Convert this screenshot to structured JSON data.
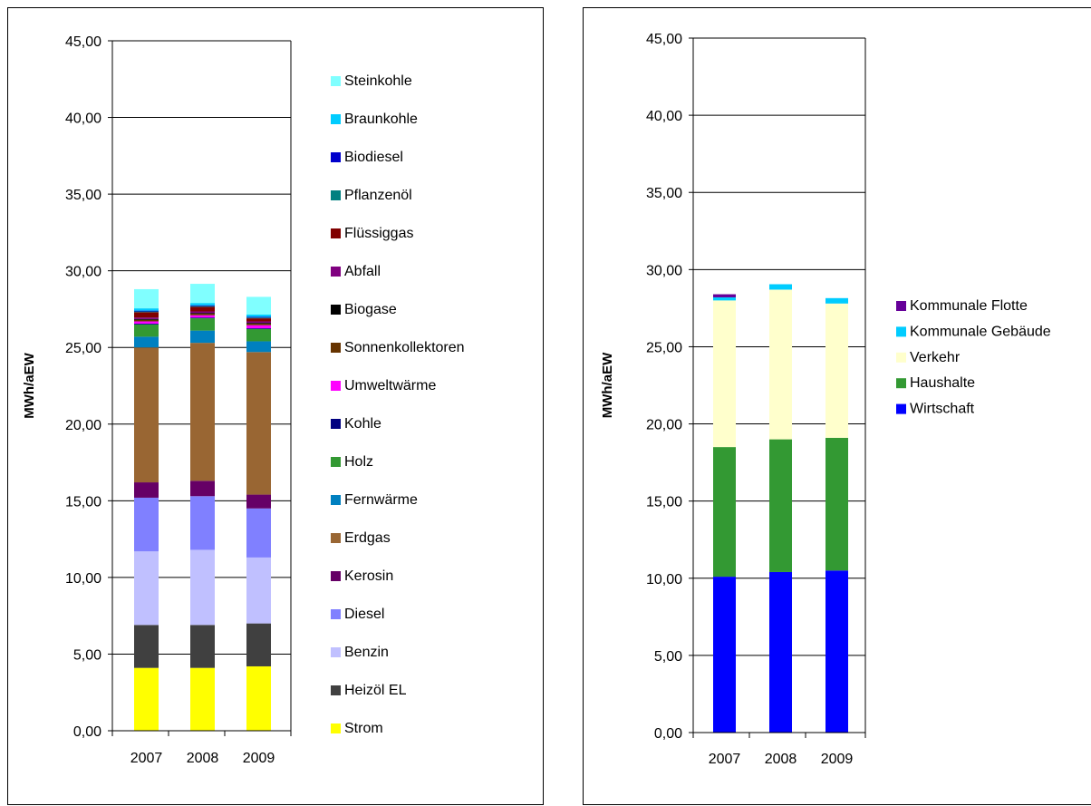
{
  "chart_data": [
    {
      "type": "bar",
      "stacked": true,
      "ylabel": "MWh/aEW",
      "ylim": [
        0,
        45
      ],
      "yticks": [
        "0,00",
        "5,00",
        "10,00",
        "15,00",
        "20,00",
        "25,00",
        "30,00",
        "35,00",
        "40,00",
        "45,00"
      ],
      "categories": [
        "2007",
        "2008",
        "2009"
      ],
      "grid": true,
      "legend_position": "right",
      "series": [
        {
          "name": "Strom",
          "color": "#ffff00",
          "values": [
            4.1,
            4.1,
            4.2
          ]
        },
        {
          "name": "Heizöl EL",
          "color": "#404040",
          "values": [
            2.8,
            2.8,
            2.8
          ]
        },
        {
          "name": "Benzin",
          "color": "#c0c0ff",
          "values": [
            4.8,
            4.9,
            4.3
          ]
        },
        {
          "name": "Diesel",
          "color": "#8080ff",
          "values": [
            3.5,
            3.5,
            3.2
          ]
        },
        {
          "name": "Kerosin",
          "color": "#660066",
          "values": [
            1.0,
            1.0,
            0.9
          ]
        },
        {
          "name": "Erdgas",
          "color": "#996633",
          "values": [
            8.8,
            9.0,
            9.3
          ]
        },
        {
          "name": "Fernwärme",
          "color": "#0080c0",
          "values": [
            0.7,
            0.8,
            0.7
          ]
        },
        {
          "name": "Holz",
          "color": "#339933",
          "values": [
            0.8,
            0.8,
            0.8
          ]
        },
        {
          "name": "Kohle",
          "color": "#000080",
          "values": [
            0.05,
            0.05,
            0.05
          ]
        },
        {
          "name": "Umweltwärme",
          "color": "#ff00ff",
          "values": [
            0.15,
            0.15,
            0.2
          ]
        },
        {
          "name": "Sonnenkollektoren",
          "color": "#663300",
          "values": [
            0.1,
            0.1,
            0.1
          ]
        },
        {
          "name": "Biogase",
          "color": "#000000",
          "values": [
            0.05,
            0.05,
            0.05
          ]
        },
        {
          "name": "Abfall",
          "color": "#800080",
          "values": [
            0.1,
            0.1,
            0.1
          ]
        },
        {
          "name": "Flüssiggas",
          "color": "#800000",
          "values": [
            0.35,
            0.3,
            0.2
          ]
        },
        {
          "name": "Pflanzenöl",
          "color": "#008080",
          "values": [
            0.05,
            0.05,
            0.05
          ]
        },
        {
          "name": "Biodiesel",
          "color": "#0000cc",
          "values": [
            0.05,
            0.05,
            0.05
          ]
        },
        {
          "name": "Braunkohle",
          "color": "#00ccff",
          "values": [
            0.15,
            0.15,
            0.15
          ]
        },
        {
          "name": "Steinkohle",
          "color": "#80ffff",
          "values": [
            1.25,
            1.25,
            1.15
          ]
        }
      ]
    },
    {
      "type": "bar",
      "stacked": true,
      "ylabel": "MWh/aEW",
      "ylim": [
        0,
        45
      ],
      "yticks": [
        "0,00",
        "5,00",
        "10,00",
        "15,00",
        "20,00",
        "25,00",
        "30,00",
        "35,00",
        "40,00",
        "45,00"
      ],
      "categories": [
        "2007",
        "2008",
        "2009"
      ],
      "grid": true,
      "legend_position": "right",
      "series": [
        {
          "name": "Wirtschaft",
          "color": "#0000ff",
          "values": [
            10.1,
            10.4,
            10.5
          ]
        },
        {
          "name": "Haushalte",
          "color": "#339933",
          "values": [
            8.4,
            8.6,
            8.6
          ]
        },
        {
          "name": "Verkehr",
          "color": "#ffffcc",
          "values": [
            9.5,
            9.7,
            8.7
          ]
        },
        {
          "name": "Kommunale Gebäude",
          "color": "#00ccff",
          "values": [
            0.2,
            0.35,
            0.35
          ]
        },
        {
          "name": "Kommunale Flotte",
          "color": "#660099",
          "values": [
            0.2,
            0,
            0
          ]
        }
      ]
    }
  ]
}
